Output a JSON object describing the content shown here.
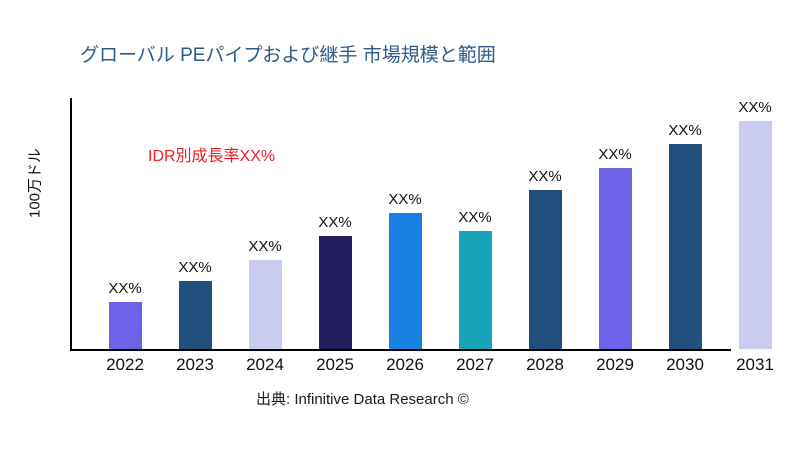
{
  "page": {
    "title": "グローバル PEパイプおよび継手 市場規模と範囲",
    "source": "出典: Infinitive Data Research ©"
  },
  "colors": {
    "title": "#2e5b8a",
    "axis": "#000000",
    "annotation": "#ee1e25"
  },
  "chart_data": {
    "type": "bar",
    "title": "グローバル PEパイプおよび継手 市場規模と範囲",
    "xlabel": "",
    "ylabel": "100万ドル",
    "categories": [
      "2022",
      "2023",
      "2024",
      "2025",
      "2026",
      "2027",
      "2028",
      "2029",
      "2030",
      "2031"
    ],
    "values": [
      47,
      68,
      89,
      113,
      136,
      118,
      159,
      181,
      205,
      228
    ],
    "ylim": [
      0,
      251
    ],
    "bar_labels": [
      "XX%",
      "XX%",
      "XX%",
      "XX%",
      "XX%",
      "XX%",
      "XX%",
      "XX%",
      "XX%",
      "XX%"
    ],
    "bar_colors": [
      "#6c63e8",
      "#21507e",
      "#c9ccef",
      "#241e5f",
      "#1780e0",
      "#18a4b8",
      "#21507e",
      "#6c63e8",
      "#21507e",
      "#c9ccef"
    ],
    "grid": false,
    "legend": null,
    "annotation": {
      "text": "IDR別成長率XX%",
      "color": "#ee1e25"
    }
  }
}
